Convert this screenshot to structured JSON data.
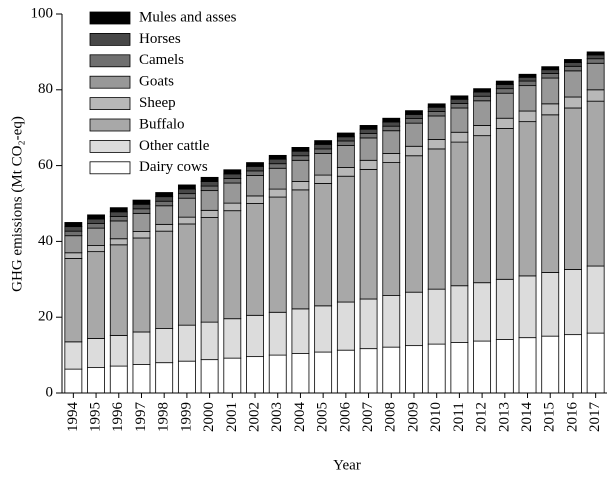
{
  "chart_data": {
    "type": "stacked-bar",
    "x_label": "Year",
    "y_label": "GHG emissions (Mt CO₂-eq)",
    "categories": [
      "1994",
      "1995",
      "1996",
      "1997",
      "1998",
      "1999",
      "2000",
      "2001",
      "2002",
      "2003",
      "2004",
      "2005",
      "2006",
      "2007",
      "2008",
      "2009",
      "2010",
      "2011",
      "2012",
      "2013",
      "2014",
      "2015",
      "2016",
      "2017"
    ],
    "ylim": [
      0,
      100
    ],
    "yticks": [
      0,
      20,
      40,
      60,
      80,
      100
    ],
    "legend": "upper left",
    "series": [
      {
        "name": "Dairy cows",
        "color": "#ffffff",
        "values": [
          6.3,
          6.7,
          7.1,
          7.5,
          8.0,
          8.4,
          8.8,
          9.2,
          9.6,
          10.0,
          10.4,
          10.8,
          11.3,
          11.7,
          12.1,
          12.5,
          12.9,
          13.3,
          13.7,
          14.1,
          14.6,
          15.0,
          15.4,
          15.8
        ]
      },
      {
        "name": "Other cattle",
        "color": "#dcdcdc",
        "values": [
          7.2,
          7.7,
          8.1,
          8.6,
          9.0,
          9.5,
          9.9,
          10.4,
          10.9,
          11.3,
          11.8,
          12.2,
          12.7,
          13.1,
          13.6,
          14.1,
          14.5,
          15.0,
          15.4,
          15.9,
          16.3,
          16.8,
          17.2,
          17.7
        ]
      },
      {
        "name": "Buffalo",
        "color": "#a8a8a8",
        "values": [
          22.0,
          22.9,
          23.9,
          24.8,
          25.7,
          26.7,
          27.6,
          28.5,
          29.5,
          30.4,
          31.4,
          32.3,
          33.2,
          34.2,
          35.1,
          36.0,
          37.0,
          37.9,
          38.8,
          39.8,
          40.7,
          41.6,
          42.6,
          43.5
        ]
      },
      {
        "name": "Sheep",
        "color": "#b8b8b8",
        "values": [
          1.5,
          1.6,
          1.6,
          1.7,
          1.8,
          1.8,
          1.9,
          2.0,
          2.0,
          2.1,
          2.2,
          2.2,
          2.3,
          2.4,
          2.4,
          2.5,
          2.5,
          2.6,
          2.7,
          2.7,
          2.8,
          2.9,
          2.9,
          3.0
        ]
      },
      {
        "name": "Goats",
        "color": "#989898",
        "values": [
          4.5,
          4.6,
          4.7,
          4.8,
          4.9,
          5.0,
          5.2,
          5.3,
          5.4,
          5.5,
          5.6,
          5.7,
          5.8,
          5.9,
          6.0,
          6.1,
          6.2,
          6.4,
          6.5,
          6.6,
          6.7,
          6.8,
          6.9,
          7.0
        ]
      },
      {
        "name": "Camels",
        "color": "#707070",
        "values": [
          1.2,
          1.2,
          1.2,
          1.2,
          1.2,
          1.2,
          1.2,
          1.2,
          1.2,
          1.2,
          1.2,
          1.2,
          1.2,
          1.2,
          1.2,
          1.2,
          1.2,
          1.2,
          1.2,
          1.2,
          1.2,
          1.2,
          1.2,
          1.2
        ]
      },
      {
        "name": "Horses",
        "color": "#484848",
        "values": [
          1.2,
          1.2,
          1.2,
          1.2,
          1.2,
          1.2,
          1.2,
          1.2,
          1.2,
          1.2,
          1.2,
          1.2,
          1.1,
          1.1,
          1.1,
          1.1,
          1.1,
          1.1,
          1.1,
          1.1,
          1.0,
          1.0,
          1.0,
          1.0
        ]
      },
      {
        "name": "Mules and asses",
        "color": "#000000",
        "values": [
          1.1,
          1.1,
          1.1,
          1.1,
          1.1,
          1.1,
          1.1,
          1.1,
          1.0,
          1.0,
          1.0,
          1.0,
          1.0,
          1.0,
          1.0,
          1.0,
          0.9,
          0.9,
          0.9,
          0.9,
          0.8,
          0.8,
          0.8,
          0.8
        ]
      }
    ]
  }
}
